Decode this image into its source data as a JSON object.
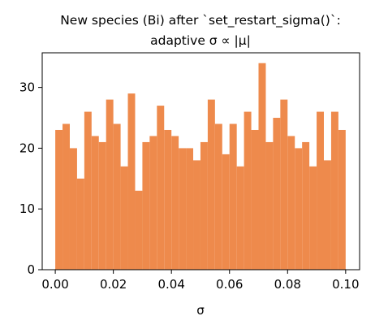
{
  "chart_data": {
    "type": "histogram",
    "title": [
      "New species (Bi) after `set_restart_sigma()`:",
      "adaptive σ ∝ |μ|"
    ],
    "x_label": "σ",
    "bins": [
      0,
      0.0025,
      0.005,
      0.0075,
      0.01,
      0.0125,
      0.015,
      0.0175,
      0.02,
      0.0225,
      0.025,
      0.0275,
      0.03,
      0.0325,
      0.035,
      0.0375,
      0.04,
      0.0425,
      0.045,
      0.0475,
      0.05,
      0.0525,
      0.055,
      0.0575,
      0.06,
      0.0625,
      0.065,
      0.0675,
      0.07,
      0.0725,
      0.075,
      0.0775,
      0.08,
      0.0825,
      0.085,
      0.0875,
      0.09,
      0.0925,
      0.095,
      0.0975,
      0.1
    ],
    "values": [
      23,
      24,
      20,
      15,
      26,
      22,
      21,
      28,
      24,
      17,
      29,
      13,
      21,
      22,
      27,
      23,
      22,
      20,
      20,
      18,
      21,
      28,
      24,
      19,
      24,
      17,
      26,
      23,
      34,
      21,
      25,
      28,
      22,
      20,
      21,
      17,
      26,
      18,
      26,
      23
    ],
    "color": "#ee8a4c",
    "xlim": [
      -0.0045,
      0.1048
    ],
    "ylim": [
      0,
      35.7
    ],
    "xticks": [
      {
        "value": 0,
        "label": "0.00"
      },
      {
        "value": 0.02,
        "label": "0.02"
      },
      {
        "value": 0.04,
        "label": "0.04"
      },
      {
        "value": 0.06,
        "label": "0.06"
      },
      {
        "value": 0.08,
        "label": "0.08"
      },
      {
        "value": 0.1,
        "label": "0.10"
      }
    ],
    "yticks": [
      0,
      10,
      20,
      30
    ]
  }
}
